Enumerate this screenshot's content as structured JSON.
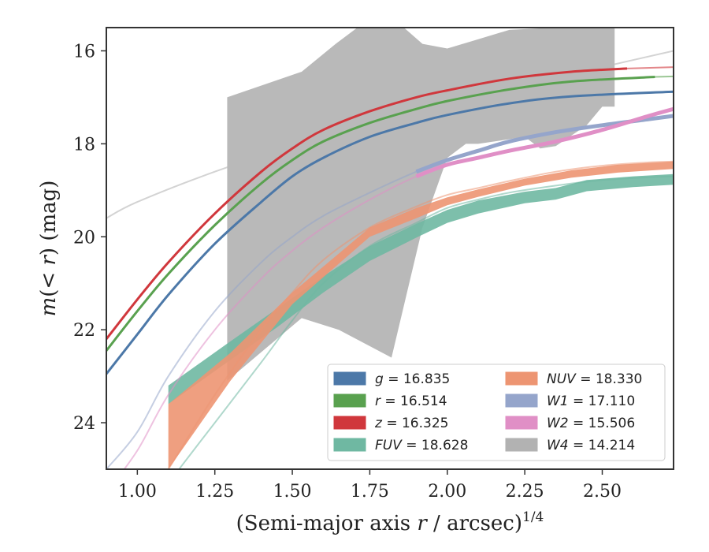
{
  "chart_data": {
    "type": "line",
    "xlabel": "(Semi-major axis r / arcsec)",
    "xlabel_sup": "1/4",
    "ylabel": "m(< r) (mag)",
    "xlim": [
      0.9,
      2.73
    ],
    "ylim": [
      25.0,
      15.5
    ],
    "y_inverted": true,
    "xticks": [
      1.0,
      1.25,
      1.5,
      1.75,
      2.0,
      2.25,
      2.5
    ],
    "xtick_labels": [
      "1.00",
      "1.25",
      "1.50",
      "1.75",
      "2.00",
      "2.25",
      "2.50"
    ],
    "yticks": [
      16,
      18,
      20,
      22,
      24
    ],
    "ytick_labels": [
      "16",
      "18",
      "20",
      "22",
      "24"
    ],
    "legend_location": "lower-right",
    "legend_columns": 2,
    "legend": [
      {
        "band": "g",
        "value": "16.835",
        "color": "#4c78a8"
      },
      {
        "band": "r",
        "value": "16.514",
        "color": "#59a14f"
      },
      {
        "band": "z",
        "value": "16.325",
        "color": "#d0373c"
      },
      {
        "band": "FUV",
        "value": "18.628",
        "color": "#6fb8a2"
      },
      {
        "band": "NUV",
        "value": "18.330",
        "color": "#ed9572"
      },
      {
        "band": "W1",
        "value": "17.110",
        "color": "#95a5cb"
      },
      {
        "band": "W2",
        "value": "15.506",
        "color": "#e08fc6"
      },
      {
        "band": "W4",
        "value": "14.214",
        "color": "#b2b2b2"
      }
    ],
    "series": [
      {
        "name": "W4 model",
        "color": "#d3d3d3",
        "x": [
          0.9,
          1.0,
          1.25,
          1.5,
          1.75,
          2.0,
          2.25,
          2.5,
          2.73
        ],
        "y": [
          19.6,
          19.25,
          18.6,
          18.05,
          17.6,
          17.15,
          16.75,
          16.35,
          16.0
        ]
      },
      {
        "name": "z",
        "color": "#d0373c",
        "x": [
          0.9,
          1.0,
          1.1,
          1.25,
          1.4,
          1.5,
          1.6,
          1.75,
          1.9,
          2.0,
          2.2,
          2.4,
          2.58
        ],
        "y": [
          22.2,
          21.35,
          20.55,
          19.5,
          18.6,
          18.1,
          17.7,
          17.3,
          17.0,
          16.85,
          16.6,
          16.45,
          16.38
        ],
        "model_extension": {
          "x": [
            2.58,
            2.73
          ],
          "y": [
            16.38,
            16.35
          ]
        }
      },
      {
        "name": "r",
        "color": "#59a14f",
        "x": [
          0.9,
          1.0,
          1.1,
          1.25,
          1.4,
          1.5,
          1.6,
          1.75,
          1.9,
          2.0,
          2.2,
          2.4,
          2.67
        ],
        "y": [
          22.45,
          21.6,
          20.8,
          19.75,
          18.85,
          18.35,
          17.95,
          17.55,
          17.25,
          17.08,
          16.83,
          16.66,
          16.56
        ],
        "model_extension": {
          "x": [
            2.67,
            2.73
          ],
          "y": [
            16.56,
            16.55
          ]
        }
      },
      {
        "name": "g",
        "color": "#4c78a8",
        "x": [
          0.9,
          1.0,
          1.1,
          1.25,
          1.4,
          1.5,
          1.6,
          1.75,
          1.9,
          2.0,
          2.2,
          2.4,
          2.73
        ],
        "y": [
          22.95,
          22.1,
          21.25,
          20.15,
          19.25,
          18.7,
          18.3,
          17.85,
          17.55,
          17.38,
          17.13,
          16.98,
          16.88
        ]
      },
      {
        "name": "W1",
        "color": "#95a5cb",
        "x": [
          0.9,
          1.0,
          1.1,
          1.25,
          1.4,
          1.5,
          1.6,
          1.75,
          1.9,
          2.0,
          2.1,
          2.2,
          2.35,
          2.5,
          2.65,
          2.73
        ],
        "y": [
          25.0,
          24.2,
          23.0,
          21.6,
          20.55,
          20.0,
          19.55,
          19.05,
          18.6,
          18.35,
          18.15,
          17.95,
          17.75,
          17.6,
          17.47,
          17.4
        ]
      },
      {
        "name": "W2",
        "color": "#e08fc6",
        "x": [
          0.9,
          1.0,
          1.1,
          1.25,
          1.4,
          1.5,
          1.6,
          1.75,
          1.9,
          2.0,
          2.1,
          2.2,
          2.35,
          2.5,
          2.65,
          2.73
        ],
        "y": [
          25.5,
          24.6,
          23.4,
          22.0,
          20.9,
          20.3,
          19.8,
          19.2,
          18.7,
          18.45,
          18.3,
          18.15,
          17.95,
          17.7,
          17.4,
          17.25
        ]
      },
      {
        "name": "NUV",
        "color": "#ed9572",
        "x": [
          1.0,
          1.1,
          1.25,
          1.4,
          1.5,
          1.6,
          1.75,
          1.9,
          2.0,
          2.1,
          2.2,
          2.35,
          2.5,
          2.65,
          2.73
        ],
        "y": [
          26.0,
          25.0,
          23.4,
          22.0,
          21.2,
          20.5,
          19.8,
          19.35,
          19.1,
          18.95,
          18.8,
          18.6,
          18.47,
          18.4,
          18.38
        ],
        "band_x": [
          1.1,
          1.3,
          1.5,
          1.75,
          1.9,
          2.0,
          2.1,
          2.25,
          2.4,
          2.55,
          2.73
        ],
        "band_lo": [
          23.6,
          22.5,
          21.2,
          19.8,
          19.38,
          19.15,
          18.98,
          18.75,
          18.57,
          18.45,
          18.38
        ],
        "band_hi": [
          25.0,
          23.1,
          21.45,
          20.0,
          19.6,
          19.32,
          19.14,
          18.9,
          18.73,
          18.62,
          18.54
        ]
      },
      {
        "name": "FUV",
        "color": "#6fb8a2",
        "x": [
          1.0,
          1.1,
          1.25,
          1.4,
          1.5,
          1.6,
          1.75,
          1.9,
          2.0,
          2.1,
          2.2,
          2.35,
          2.5,
          2.65,
          2.73
        ],
        "y": [
          26.2,
          25.3,
          24.0,
          22.7,
          21.8,
          21.0,
          20.2,
          19.7,
          19.38,
          19.2,
          19.05,
          18.9,
          18.78,
          18.72,
          18.7
        ],
        "band_x": [
          1.1,
          1.29,
          1.45,
          1.6,
          1.75,
          1.9,
          2.0,
          2.1,
          2.25,
          2.35,
          2.45,
          2.6,
          2.73
        ],
        "band_lo": [
          23.2,
          22.3,
          21.55,
          20.85,
          20.2,
          19.72,
          19.42,
          19.22,
          19.03,
          18.95,
          18.78,
          18.7,
          18.65
        ],
        "band_hi": [
          23.6,
          22.7,
          21.95,
          21.2,
          20.52,
          20.02,
          19.7,
          19.5,
          19.28,
          19.2,
          19.02,
          18.93,
          18.88
        ]
      }
    ],
    "uncertainty_region": {
      "name": "W4",
      "color": "#b9b9b9",
      "x_upper": [
        1.29,
        1.53,
        1.64,
        1.75,
        1.78,
        1.86,
        1.92,
        2.0,
        2.1,
        2.2,
        2.35,
        2.5,
        2.54
      ],
      "y_upper": [
        17.0,
        16.45,
        15.85,
        15.3,
        15.5,
        15.5,
        15.85,
        15.95,
        15.75,
        15.55,
        15.5,
        15.5,
        15.5
      ],
      "x_lower": [
        2.54,
        2.5,
        2.45,
        2.35,
        2.3,
        2.25,
        2.2,
        2.1,
        2.06,
        2.0,
        1.92,
        1.82,
        1.65,
        1.53,
        1.29
      ],
      "y_lower": [
        17.2,
        17.2,
        17.6,
        18.05,
        18.1,
        17.85,
        17.9,
        18.0,
        18.0,
        18.3,
        19.8,
        22.6,
        22.0,
        21.75,
        23.1
      ]
    }
  }
}
